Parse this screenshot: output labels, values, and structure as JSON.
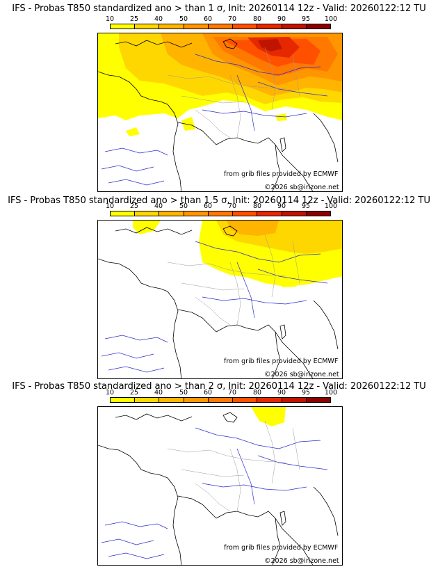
{
  "colorbar": {
    "labels": [
      "10",
      "25",
      "40",
      "50",
      "60",
      "70",
      "80",
      "90",
      "95",
      "100"
    ],
    "colors": [
      "#ffff00",
      "#ffd700",
      "#ffb400",
      "#ff9600",
      "#ff7800",
      "#ff5000",
      "#e62800",
      "#be1400",
      "#8c0000",
      "#5a0000"
    ]
  },
  "panels": [
    {
      "title": "IFS - Probas T850  standardized ano > than 1 σ, Init: 20260114 12z - Valid: 20260122:12 TU",
      "source": "from grib files provided by ECMWF",
      "copyright": "©2026 sb@irizone.net"
    },
    {
      "title": "IFS - Probas T850  standardized ano > than 1.5 σ, Init: 20260114 12z - Valid: 20260122:12 TU",
      "source": "from grib files provided by ECMWF",
      "copyright": "©2026 sb@irizone.net"
    },
    {
      "title": "IFS - Probas T850  standardized ano > than 2 σ, Init: 20260114 12z - Valid: 20260122:12 TU",
      "source": "from grib files provided by ECMWF",
      "copyright": "©2026 sb@irizone.net"
    }
  ]
}
